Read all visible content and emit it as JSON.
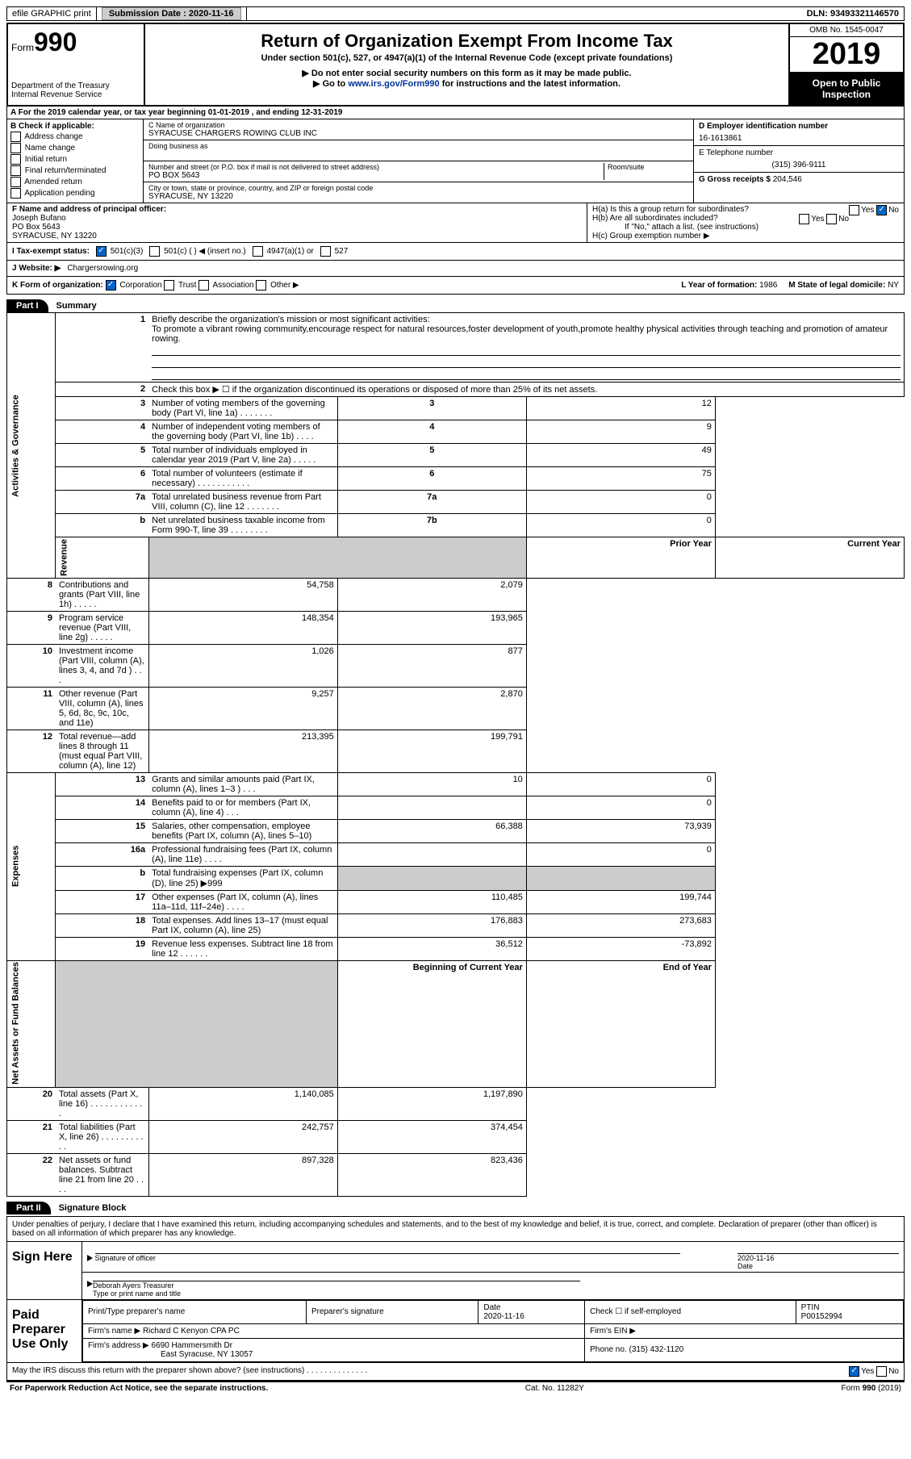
{
  "header_bar": {
    "efile": "efile GRAPHIC print",
    "sub_label": "Submission Date :",
    "sub_date": "2020-11-16",
    "dln": "DLN: 93493321146570"
  },
  "form_header": {
    "form_word": "Form",
    "form_num": "990",
    "dept": "Department of the Treasury\nInternal Revenue Service",
    "title": "Return of Organization Exempt From Income Tax",
    "subtitle": "Under section 501(c), 527, or 4947(a)(1) of the Internal Revenue Code (except private foundations)",
    "note1": "▶ Do not enter social security numbers on this form as it may be made public.",
    "note2_pre": "▶ Go to ",
    "note2_link": "www.irs.gov/Form990",
    "note2_post": " for instructions and the latest information.",
    "omb": "OMB No. 1545-0047",
    "year": "2019",
    "open": "Open to Public Inspection"
  },
  "line_a": "A   For the 2019 calendar year, or tax year beginning 01-01-2019    , and ending 12-31-2019",
  "section_b": {
    "label": "B Check if applicable:",
    "items": [
      "Address change",
      "Name change",
      "Initial return",
      "Final return/terminated",
      "Amended return",
      "Application pending"
    ]
  },
  "section_c": {
    "name_label": "C Name of organization",
    "name": "SYRACUSE CHARGERS ROWING CLUB INC",
    "dba_label": "Doing business as",
    "addr_label": "Number and street (or P.O. box if mail is not delivered to street address)",
    "room_label": "Room/suite",
    "addr": "PO BOX 5643",
    "city_label": "City or town, state or province, country, and ZIP or foreign postal code",
    "city": "SYRACUSE, NY  13220"
  },
  "section_d": {
    "ein_label": "D Employer identification number",
    "ein": "16-1613861",
    "tel_label": "E Telephone number",
    "tel": "(315) 396-9111",
    "gross_label": "G Gross receipts $",
    "gross": "204,546"
  },
  "section_f": {
    "label": "F  Name and address of principal officer:",
    "name": "Joseph Bufano",
    "addr1": "PO Box 5643",
    "addr2": "SYRACUSE, NY  13220"
  },
  "section_h": {
    "ha": "H(a)  Is this a group return for subordinates?",
    "hb": "H(b)  Are all subordinates included?",
    "hb_note": "If \"No,\" attach a list. (see instructions)",
    "hc": "H(c)  Group exemption number ▶",
    "yes": "Yes",
    "no": "No"
  },
  "section_i": {
    "label": "I    Tax-exempt status:",
    "opts": [
      "501(c)(3)",
      "501(c) (  ) ◀ (insert no.)",
      "4947(a)(1) or",
      "527"
    ]
  },
  "section_j": {
    "label": "J   Website: ▶",
    "val": "Chargersrowing.org"
  },
  "section_k": {
    "label": "K Form of organization:",
    "opts": [
      "Corporation",
      "Trust",
      "Association",
      "Other ▶"
    ],
    "l_label": "L Year of formation:",
    "l_val": "1986",
    "m_label": "M State of legal domicile:",
    "m_val": "NY"
  },
  "part1": {
    "tab": "Part I",
    "title": "Summary",
    "line1_label": "Briefly describe the organization's mission or most significant activities:",
    "line1_text": "To promote a vibrant rowing community,encourage respect for natural resources,foster development of youth,promote healthy physical activities through teaching and promotion of amateur rowing.",
    "line2": "Check this box ▶ ☐  if the organization discontinued its operations or disposed of more than 25% of its net assets.",
    "governance_label": "Activities & Governance",
    "revenue_label": "Revenue",
    "expenses_label": "Expenses",
    "netassets_label": "Net Assets or Fund Balances",
    "prior_year": "Prior Year",
    "current_year": "Current Year",
    "beginning": "Beginning of Current Year",
    "endofyear": "End of Year",
    "rows_gov": [
      {
        "n": "3",
        "d": "Number of voting members of the governing body (Part VI, line 1a)    .    .    .    .    .    .    .",
        "box": "3",
        "v": "12"
      },
      {
        "n": "4",
        "d": "Number of independent voting members of the governing body (Part VI, line 1b)   .    .    .    .",
        "box": "4",
        "v": "9"
      },
      {
        "n": "5",
        "d": "Total number of individuals employed in calendar year 2019 (Part V, line 2a)   .    .    .    .    .",
        "box": "5",
        "v": "49"
      },
      {
        "n": "6",
        "d": "Total number of volunteers (estimate if necessary)    .    .    .    .    .    .    .    .    .    .    .",
        "box": "6",
        "v": "75"
      },
      {
        "n": "7a",
        "d": "Total unrelated business revenue from Part VIII, column (C), line 12   .    .    .    .    .    .    .",
        "box": "7a",
        "v": "0"
      },
      {
        "n": "b",
        "d": "Net unrelated business taxable income from Form 990-T, line 39   .    .    .    .    .    .    .    .",
        "box": "7b",
        "v": "0"
      }
    ],
    "rows_rev": [
      {
        "n": "8",
        "d": "Contributions and grants (Part VIII, line 1h)    .    .    .    .    .",
        "p": "54,758",
        "v": "2,079"
      },
      {
        "n": "9",
        "d": "Program service revenue (Part VIII, line 2g)    .    .    .    .    .",
        "p": "148,354",
        "v": "193,965"
      },
      {
        "n": "10",
        "d": "Investment income (Part VIII, column (A), lines 3, 4, and 7d )    .    .    .",
        "p": "1,026",
        "v": "877"
      },
      {
        "n": "11",
        "d": "Other revenue (Part VIII, column (A), lines 5, 6d, 8c, 9c, 10c, and 11e)",
        "p": "9,257",
        "v": "2,870"
      },
      {
        "n": "12",
        "d": "Total revenue—add lines 8 through 11 (must equal Part VIII, column (A), line 12)",
        "p": "213,395",
        "v": "199,791"
      }
    ],
    "rows_exp": [
      {
        "n": "13",
        "d": "Grants and similar amounts paid (Part IX, column (A), lines 1–3 )   .    .    .",
        "p": "10",
        "v": "0"
      },
      {
        "n": "14",
        "d": "Benefits paid to or for members (Part IX, column (A), line 4)   .    .    .",
        "p": "",
        "v": "0"
      },
      {
        "n": "15",
        "d": "Salaries, other compensation, employee benefits (Part IX, column (A), lines 5–10)",
        "p": "66,388",
        "v": "73,939"
      },
      {
        "n": "16a",
        "d": "Professional fundraising fees (Part IX, column (A), line 11e)   .    .    .    .",
        "p": "",
        "v": "0"
      },
      {
        "n": "b",
        "d": "Total fundraising expenses (Part IX, column (D), line 25) ▶999",
        "p": "shaded",
        "v": "shaded"
      },
      {
        "n": "17",
        "d": "Other expenses (Part IX, column (A), lines 11a–11d, 11f–24e)   .    .    .    .",
        "p": "110,485",
        "v": "199,744"
      },
      {
        "n": "18",
        "d": "Total expenses. Add lines 13–17 (must equal Part IX, column (A), line 25)",
        "p": "176,883",
        "v": "273,683"
      },
      {
        "n": "19",
        "d": "Revenue less expenses. Subtract line 18 from line 12   .    .    .    .    .    .",
        "p": "36,512",
        "v": "-73,892"
      }
    ],
    "rows_na": [
      {
        "n": "20",
        "d": "Total assets (Part X, line 16)   .    .    .    .    .    .    .    .    .    .    .    .",
        "p": "1,140,085",
        "v": "1,197,890"
      },
      {
        "n": "21",
        "d": "Total liabilities (Part X, line 26)   .    .    .    .    .    .    .    .    .    .    .",
        "p": "242,757",
        "v": "374,454"
      },
      {
        "n": "22",
        "d": "Net assets or fund balances. Subtract line 21 from line 20   .    .    .    .",
        "p": "897,328",
        "v": "823,436"
      }
    ]
  },
  "part2": {
    "tab": "Part II",
    "title": "Signature Block",
    "intro": "Under penalties of perjury, I declare that I have examined this return, including accompanying schedules and statements, and to the best of my knowledge and belief, it is true, correct, and complete. Declaration of preparer (other than officer) is based on all information of which preparer has any knowledge.",
    "sign_here": "Sign Here",
    "sig_officer": "Signature of officer",
    "sig_date": "2020-11-16",
    "date_label": "Date",
    "officer_name": "Deborah Ayers Treasurer",
    "type_label": "Type or print name and title",
    "paid_label": "Paid Preparer Use Only",
    "prep_name_label": "Print/Type preparer's name",
    "prep_sig_label": "Preparer's signature",
    "prep_date": "2020-11-16",
    "check_self": "Check ☐  if self-employed",
    "ptin_label": "PTIN",
    "ptin": "P00152994",
    "firm_name_label": "Firm's name      ▶",
    "firm_name": "Richard C Kenyon CPA PC",
    "firm_ein_label": "Firm's EIN ▶",
    "firm_addr_label": "Firm's address ▶",
    "firm_addr1": "6690 Hammersmith Dr",
    "firm_addr2": "East Syracuse, NY  13057",
    "phone_label": "Phone no.",
    "phone": "(315) 432-1120",
    "discuss": "May the IRS discuss this return with the preparer shown above? (see instructions)    .    .    .    .    .    .    .    .    .    .    .    .    .    ."
  },
  "footer": {
    "pra": "For Paperwork Reduction Act Notice, see the separate instructions.",
    "cat": "Cat. No. 11282Y",
    "form": "Form 990 (2019)"
  }
}
